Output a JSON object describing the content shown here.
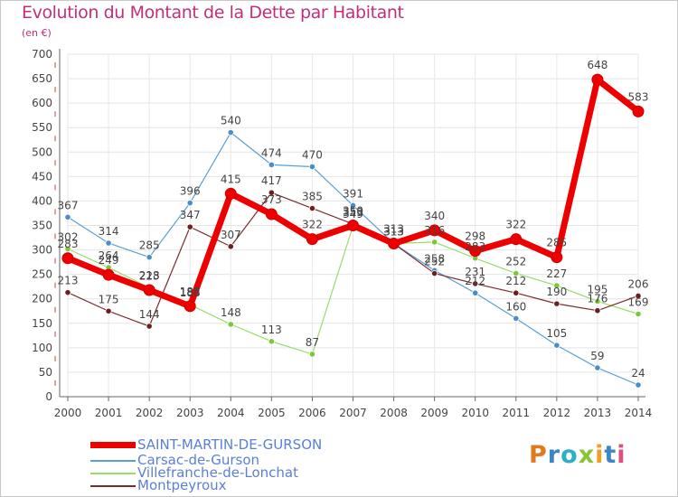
{
  "title": "Evolution du Montant de la Dette par Habitant",
  "unit": "(en €)",
  "brand": {
    "name": "Proxiti"
  },
  "colors": {
    "title": "#c0307a",
    "axis": "#555555",
    "grid": "#e6e6e6"
  },
  "chart_data": {
    "type": "line",
    "title": "Evolution du Montant de la Dette par Habitant",
    "ylabel": "(en €)",
    "xlabel": "",
    "ylim": [
      0,
      700
    ],
    "yticks": [
      0,
      50,
      100,
      150,
      200,
      250,
      300,
      350,
      400,
      450,
      500,
      550,
      600,
      650,
      700
    ],
    "x": [
      2000,
      2001,
      2002,
      2003,
      2004,
      2005,
      2006,
      2007,
      2008,
      2009,
      2010,
      2011,
      2012,
      2013,
      2014
    ],
    "grid": true,
    "legend": "bottom-left",
    "series": [
      {
        "name": "Carsac-de-Gurson",
        "color": "#5a9fd4",
        "marker": "#4a8dc8",
        "width": 1.2,
        "values": [
          367,
          314,
          285,
          396,
          540,
          474,
          470,
          391,
          313,
          258,
          212,
          160,
          105,
          59,
          24
        ],
        "labels": [
          "367",
          "314",
          "285",
          "396",
          "540",
          "474",
          "470",
          "391",
          "313",
          "258",
          "212",
          "160",
          "105",
          "59",
          "24"
        ]
      },
      {
        "name": "Villefranche-de-Lonchat",
        "color": "#99dd66",
        "marker": "#7cc63c",
        "width": 1.2,
        "values": [
          302,
          264,
          223,
          188,
          148,
          113,
          87,
          349,
          313,
          316,
          283,
          252,
          227,
          195,
          169
        ],
        "labels": [
          "302",
          "264",
          "223",
          "188",
          "148",
          "113",
          "87",
          "349",
          "313",
          "316",
          "283",
          "252",
          "227",
          "195",
          "169"
        ]
      },
      {
        "name": "Montpeyroux",
        "color": "#7a2c2c",
        "marker": "#6b2020",
        "width": 1.2,
        "values": [
          213,
          175,
          144,
          347,
          307,
          417,
          385,
          353,
          313,
          252,
          231,
          212,
          190,
          176,
          206
        ],
        "labels": [
          "213",
          "175",
          "144",
          "347",
          "307",
          "417",
          "385",
          "353",
          "313",
          "252",
          "231",
          "212",
          "190",
          "176",
          "206"
        ]
      },
      {
        "name": "SAINT-MARTIN-DE-GURSON",
        "color": "#ee0000",
        "marker": "#ee0000",
        "width": 7,
        "values": [
          283,
          249,
          218,
          185,
          415,
          373,
          322,
          350,
          313,
          340,
          298,
          322,
          285,
          648,
          583
        ],
        "labels": [
          "283",
          "249",
          "218",
          "185",
          "415",
          "373",
          "322",
          "350",
          "313",
          "340",
          "298",
          "322",
          "285",
          "648",
          "583"
        ]
      }
    ]
  }
}
